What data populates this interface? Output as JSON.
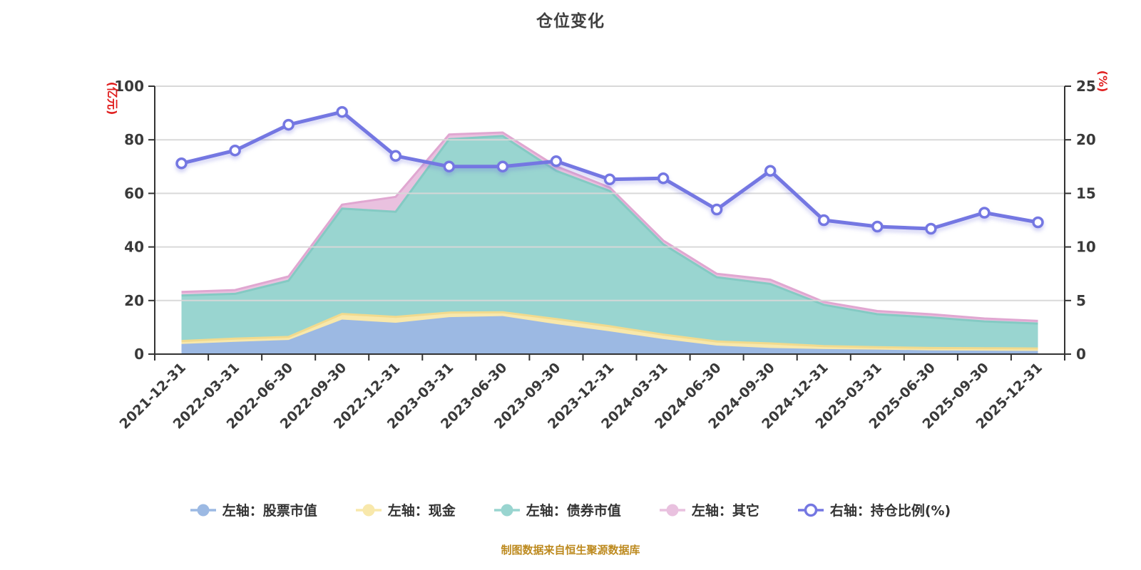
{
  "title": "仓位变化",
  "footer": "制图数据来自恒生聚源数据库",
  "colors": {
    "axis": "#333333",
    "grid": "#d8d8d8",
    "tick_text": "#3a3a3a",
    "axis_unit_red": "#e01f1f",
    "title_text": "#404040",
    "footer_text": "#bd8a1f"
  },
  "chart_data": {
    "type": "area",
    "subtype": "stacked-area-with-line",
    "title": "仓位变化",
    "grid": true,
    "legend_position": "bottom",
    "categories": [
      "2021-12-31",
      "2022-03-31",
      "2022-06-30",
      "2022-09-30",
      "2022-12-31",
      "2023-03-31",
      "2023-06-30",
      "2023-09-30",
      "2023-12-31",
      "2024-03-31",
      "2024-06-30",
      "2024-09-30",
      "2024-12-31",
      "2025-03-31",
      "2025-06-30",
      "2025-09-30",
      "2025-12-31"
    ],
    "left_axis": {
      "unit": "(亿元)",
      "min": 0,
      "max": 100,
      "ticks": [
        100,
        80,
        60,
        40,
        20,
        0
      ]
    },
    "right_axis": {
      "unit": "(%)",
      "min": 0,
      "max": 25,
      "ticks": [
        25,
        20,
        15,
        10,
        5,
        0
      ]
    },
    "series": [
      {
        "name": "左轴：股票市值",
        "type": "area",
        "axis": "left",
        "stack": true,
        "color": "#9cb9e3",
        "edge": "",
        "values": [
          3.8,
          4.6,
          5.3,
          12.9,
          11.7,
          13.8,
          14.2,
          11.2,
          8.5,
          5.6,
          3.2,
          2.3,
          1.9,
          1.7,
          1.4,
          1.3,
          1.2
        ]
      },
      {
        "name": "左轴：现金",
        "type": "area",
        "axis": "left",
        "stack": true,
        "color": "#f8e8ab",
        "edge": "#f1da8e",
        "values": [
          1.1,
          1.2,
          1.1,
          2.1,
          2.2,
          1.7,
          1.4,
          1.9,
          1.9,
          1.7,
          1.5,
          1.7,
          1.1,
          0.9,
          0.9,
          0.9,
          0.9
        ]
      },
      {
        "name": "左轴：债券市值",
        "type": "area",
        "axis": "left",
        "stack": true,
        "color": "#99d5d0",
        "edge": "#84cac3",
        "values": [
          17.0,
          16.7,
          21.0,
          39.3,
          39.2,
          64.7,
          65.8,
          55.3,
          50.5,
          33.7,
          24.0,
          22.2,
          15.4,
          12.3,
          11.4,
          10.0,
          9.3
        ]
      },
      {
        "name": "左轴：其它",
        "type": "area",
        "axis": "left",
        "stack": true,
        "color": "#e9c1df",
        "edge": "#e0a7d1",
        "values": [
          1.3,
          1.4,
          1.6,
          1.5,
          5.6,
          1.8,
          1.3,
          1.7,
          1.3,
          1.4,
          1.3,
          1.6,
          1.1,
          1.2,
          1.2,
          1.1,
          1.0
        ]
      },
      {
        "name": "右轴：持仓比例(%)",
        "type": "line",
        "axis": "right",
        "color": "#7477e2",
        "edge": "",
        "values": [
          17.8,
          19.0,
          21.4,
          22.6,
          18.5,
          17.5,
          17.5,
          18.0,
          16.3,
          16.4,
          13.5,
          17.1,
          12.5,
          11.9,
          11.7,
          13.2,
          12.3
        ]
      }
    ]
  }
}
